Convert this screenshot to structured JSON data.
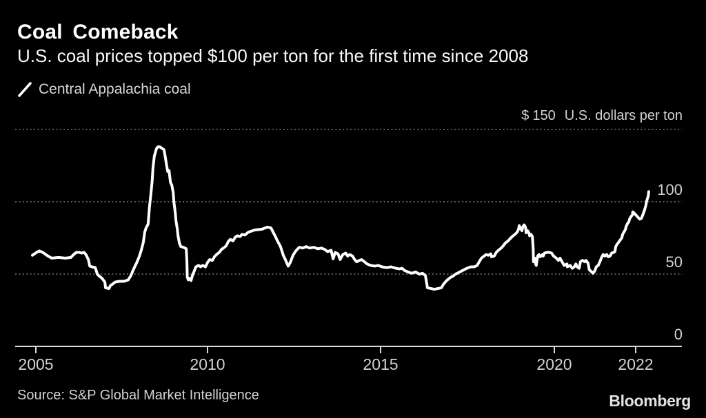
{
  "header": {
    "title": "Coal Comeback",
    "subtitle": "U.S. coal prices topped $100 per ton for the first time since 2008"
  },
  "footer": {
    "source": "Source: S&P Global Market Intelligence",
    "brand": "Bloomberg"
  },
  "colors": {
    "background": "#000000",
    "line": "#ffffff",
    "grid": "#969696",
    "axis": "#d9d9d9",
    "label_text": "#d2d2d2"
  },
  "chart_data": {
    "type": "line",
    "title": "Coal Comeback",
    "subtitle": "U.S. coal prices topped $100 per ton for the first time since 2008",
    "unit": "U.S. dollars per ton",
    "y_top_label": {
      "prefix": "$",
      "value": "150",
      "suffix": "U.S. dollars per ton"
    },
    "x_ticks": [
      2005,
      2010,
      2015,
      2020,
      2022
    ],
    "y_ticks": [
      0,
      50,
      100,
      150
    ],
    "x_range": [
      2004.4,
      2023.1
    ],
    "y_range": [
      0,
      150
    ],
    "grid": "dotted-horizontal",
    "legend_position": "top-left",
    "source": "S&P Global Market Intelligence",
    "series": [
      {
        "name": "Central Appalachia coal",
        "color": "#ffffff",
        "points": [
          [
            2004.9,
            63
          ],
          [
            2005.02,
            65
          ],
          [
            2005.1,
            66
          ],
          [
            2005.2,
            65
          ],
          [
            2005.32,
            63
          ],
          [
            2005.46,
            61
          ],
          [
            2005.66,
            61.5
          ],
          [
            2005.86,
            61
          ],
          [
            2006.02,
            61.5
          ],
          [
            2006.1,
            63.5
          ],
          [
            2006.18,
            65
          ],
          [
            2006.27,
            65
          ],
          [
            2006.33,
            64.5
          ],
          [
            2006.41,
            65
          ],
          [
            2006.47,
            63
          ],
          [
            2006.53,
            60
          ],
          [
            2006.57,
            55.5
          ],
          [
            2006.63,
            55
          ],
          [
            2006.73,
            54.5
          ],
          [
            2006.79,
            50
          ],
          [
            2006.83,
            49
          ],
          [
            2006.93,
            47
          ],
          [
            2007.01,
            44.5
          ],
          [
            2007.03,
            40.5
          ],
          [
            2007.13,
            40
          ],
          [
            2007.17,
            42
          ],
          [
            2007.23,
            43
          ],
          [
            2007.31,
            44.5
          ],
          [
            2007.43,
            45
          ],
          [
            2007.57,
            45
          ],
          [
            2007.69,
            46
          ],
          [
            2007.77,
            49
          ],
          [
            2007.83,
            52.5
          ],
          [
            2007.89,
            55.5
          ],
          [
            2007.93,
            57.5
          ],
          [
            2008.01,
            62
          ],
          [
            2008.07,
            66.5
          ],
          [
            2008.13,
            72
          ],
          [
            2008.17,
            79
          ],
          [
            2008.21,
            82
          ],
          [
            2008.27,
            84.5
          ],
          [
            2008.31,
            96.5
          ],
          [
            2008.35,
            105
          ],
          [
            2008.39,
            115
          ],
          [
            2008.41,
            123
          ],
          [
            2008.45,
            131.5
          ],
          [
            2008.51,
            136.5
          ],
          [
            2008.55,
            138
          ],
          [
            2008.61,
            138
          ],
          [
            2008.67,
            137
          ],
          [
            2008.73,
            136
          ],
          [
            2008.76,
            132.5
          ],
          [
            2008.8,
            126.5
          ],
          [
            2008.84,
            121
          ],
          [
            2008.88,
            121.5
          ],
          [
            2008.92,
            113.5
          ],
          [
            2008.96,
            111.5
          ],
          [
            2009.0,
            106.5
          ],
          [
            2009.02,
            100
          ],
          [
            2009.06,
            92.5
          ],
          [
            2009.08,
            87
          ],
          [
            2009.12,
            81
          ],
          [
            2009.14,
            76.5
          ],
          [
            2009.18,
            71.5
          ],
          [
            2009.22,
            69
          ],
          [
            2009.3,
            68.5
          ],
          [
            2009.38,
            67.5
          ],
          [
            2009.4,
            58.5
          ],
          [
            2009.41,
            48
          ],
          [
            2009.44,
            46
          ],
          [
            2009.48,
            47
          ],
          [
            2009.52,
            45.5
          ],
          [
            2009.56,
            49
          ],
          [
            2009.62,
            52.5
          ],
          [
            2009.66,
            55
          ],
          [
            2009.74,
            56
          ],
          [
            2009.8,
            55
          ],
          [
            2009.86,
            56
          ],
          [
            2009.94,
            55
          ],
          [
            2010.0,
            58
          ],
          [
            2010.06,
            60
          ],
          [
            2010.14,
            59.5
          ],
          [
            2010.2,
            62
          ],
          [
            2010.26,
            63.5
          ],
          [
            2010.34,
            65
          ],
          [
            2010.4,
            67
          ],
          [
            2010.46,
            68
          ],
          [
            2010.54,
            69.5
          ],
          [
            2010.6,
            72.5
          ],
          [
            2010.66,
            74
          ],
          [
            2010.74,
            73
          ],
          [
            2010.8,
            75.5
          ],
          [
            2010.86,
            76.5
          ],
          [
            2010.94,
            76
          ],
          [
            2011.0,
            77.5
          ],
          [
            2011.08,
            77
          ],
          [
            2011.18,
            79
          ],
          [
            2011.37,
            80.5
          ],
          [
            2011.57,
            81
          ],
          [
            2011.73,
            82.5
          ],
          [
            2011.83,
            82
          ],
          [
            2011.95,
            76.5
          ],
          [
            2012.03,
            72.5
          ],
          [
            2012.11,
            69
          ],
          [
            2012.19,
            63
          ],
          [
            2012.25,
            60
          ],
          [
            2012.33,
            55.5
          ],
          [
            2012.39,
            58
          ],
          [
            2012.47,
            63
          ],
          [
            2012.55,
            66
          ],
          [
            2012.65,
            68.5
          ],
          [
            2012.75,
            68
          ],
          [
            2012.85,
            69
          ],
          [
            2012.95,
            68
          ],
          [
            2013.07,
            68.5
          ],
          [
            2013.19,
            67.5
          ],
          [
            2013.29,
            68
          ],
          [
            2013.39,
            67
          ],
          [
            2013.47,
            65.5
          ],
          [
            2013.57,
            66.5
          ],
          [
            2013.63,
            60.5
          ],
          [
            2013.69,
            65
          ],
          [
            2013.77,
            64
          ],
          [
            2013.83,
            60
          ],
          [
            2013.91,
            63.5
          ],
          [
            2013.99,
            64.5
          ],
          [
            2014.05,
            62.5
          ],
          [
            2014.11,
            63.5
          ],
          [
            2014.19,
            62.5
          ],
          [
            2014.25,
            60
          ],
          [
            2014.31,
            58.5
          ],
          [
            2014.39,
            59.5
          ],
          [
            2014.45,
            60
          ],
          [
            2014.51,
            59
          ],
          [
            2014.61,
            57
          ],
          [
            2014.71,
            56
          ],
          [
            2014.83,
            55.5
          ],
          [
            2014.93,
            56
          ],
          [
            2015.04,
            55
          ],
          [
            2015.18,
            54.5
          ],
          [
            2015.3,
            55
          ],
          [
            2015.44,
            54
          ],
          [
            2015.54,
            53.5
          ],
          [
            2015.62,
            54
          ],
          [
            2015.69,
            52.5
          ],
          [
            2015.79,
            51.5
          ],
          [
            2015.89,
            50.5
          ],
          [
            2016.01,
            51.5
          ],
          [
            2016.11,
            50
          ],
          [
            2016.21,
            50.5
          ],
          [
            2016.29,
            49
          ],
          [
            2016.35,
            40.5
          ],
          [
            2016.55,
            39.5
          ],
          [
            2016.75,
            40.5
          ],
          [
            2016.81,
            43
          ],
          [
            2016.9,
            45.5
          ],
          [
            2017.0,
            47.5
          ],
          [
            2017.08,
            48.5
          ],
          [
            2017.16,
            50
          ],
          [
            2017.28,
            51.5
          ],
          [
            2017.36,
            52.5
          ],
          [
            2017.48,
            54
          ],
          [
            2017.6,
            55
          ],
          [
            2017.7,
            55
          ],
          [
            2017.78,
            56
          ],
          [
            2017.84,
            58.5
          ],
          [
            2017.9,
            61
          ],
          [
            2017.98,
            62.5
          ],
          [
            2018.04,
            63.5
          ],
          [
            2018.1,
            63
          ],
          [
            2018.17,
            64
          ],
          [
            2018.19,
            62
          ],
          [
            2018.27,
            62.5
          ],
          [
            2018.33,
            65
          ],
          [
            2018.39,
            66.5
          ],
          [
            2018.47,
            68
          ],
          [
            2018.53,
            69.5
          ],
          [
            2018.59,
            71.5
          ],
          [
            2018.67,
            73
          ],
          [
            2018.73,
            74.5
          ],
          [
            2018.79,
            76
          ],
          [
            2018.87,
            77.5
          ],
          [
            2018.93,
            79
          ],
          [
            2018.97,
            81
          ],
          [
            2018.99,
            83.5
          ],
          [
            2019.03,
            81.5
          ],
          [
            2019.07,
            80
          ],
          [
            2019.09,
            82.5
          ],
          [
            2019.13,
            84
          ],
          [
            2019.17,
            82.5
          ],
          [
            2019.19,
            78.5
          ],
          [
            2019.23,
            80
          ],
          [
            2019.27,
            78.5
          ],
          [
            2019.29,
            76.5
          ],
          [
            2019.33,
            77.5
          ],
          [
            2019.37,
            76
          ],
          [
            2019.39,
            68
          ],
          [
            2019.4,
            58.5
          ],
          [
            2019.44,
            61
          ],
          [
            2019.46,
            57
          ],
          [
            2019.48,
            56
          ],
          [
            2019.52,
            62.5
          ],
          [
            2019.56,
            63.5
          ],
          [
            2019.58,
            62
          ],
          [
            2019.62,
            62.5
          ],
          [
            2019.66,
            63.5
          ],
          [
            2019.68,
            62.5
          ],
          [
            2019.72,
            64.5
          ],
          [
            2019.78,
            65
          ],
          [
            2019.86,
            65
          ],
          [
            2019.92,
            64.5
          ],
          [
            2019.98,
            62.5
          ],
          [
            2020.05,
            61
          ],
          [
            2020.1,
            59.5
          ],
          [
            2020.14,
            61
          ],
          [
            2020.19,
            58.5
          ],
          [
            2020.24,
            56
          ],
          [
            2020.31,
            57
          ],
          [
            2020.32,
            55
          ],
          [
            2020.39,
            56
          ],
          [
            2020.44,
            54
          ],
          [
            2020.49,
            55
          ],
          [
            2020.53,
            57
          ],
          [
            2020.56,
            55
          ],
          [
            2020.61,
            54
          ],
          [
            2020.64,
            58.5
          ],
          [
            2020.69,
            59.5
          ],
          [
            2020.75,
            58.5
          ],
          [
            2020.78,
            59.5
          ],
          [
            2020.83,
            57.5
          ],
          [
            2020.86,
            53
          ],
          [
            2020.92,
            51.5
          ],
          [
            2020.95,
            50.5
          ],
          [
            2021.0,
            52.5
          ],
          [
            2021.03,
            55
          ],
          [
            2021.08,
            56
          ],
          [
            2021.12,
            58.5
          ],
          [
            2021.17,
            62
          ],
          [
            2021.2,
            63.5
          ],
          [
            2021.24,
            62.5
          ],
          [
            2021.29,
            63.5
          ],
          [
            2021.32,
            62
          ],
          [
            2021.37,
            62.5
          ],
          [
            2021.41,
            64.5
          ],
          [
            2021.46,
            65
          ],
          [
            2021.49,
            65.5
          ],
          [
            2021.51,
            69
          ],
          [
            2021.54,
            70.5
          ],
          [
            2021.58,
            72
          ],
          [
            2021.63,
            74
          ],
          [
            2021.66,
            75
          ],
          [
            2021.68,
            77.5
          ],
          [
            2021.71,
            79
          ],
          [
            2021.75,
            81
          ],
          [
            2021.76,
            82.5
          ],
          [
            2021.8,
            85
          ],
          [
            2021.83,
            86
          ],
          [
            2021.85,
            88
          ],
          [
            2021.88,
            89.5
          ],
          [
            2021.92,
            91
          ],
          [
            2021.93,
            93
          ],
          [
            2021.97,
            92
          ],
          [
            2022.0,
            91
          ],
          [
            2022.05,
            89.5
          ],
          [
            2022.08,
            88.5
          ],
          [
            2022.1,
            88
          ],
          [
            2022.14,
            88.5
          ],
          [
            2022.17,
            90.5
          ],
          [
            2022.19,
            92
          ],
          [
            2022.22,
            94.5
          ],
          [
            2022.25,
            97.5
          ],
          [
            2022.27,
            100.5
          ],
          [
            2022.31,
            104
          ],
          [
            2022.32,
            107
          ]
        ]
      }
    ]
  }
}
